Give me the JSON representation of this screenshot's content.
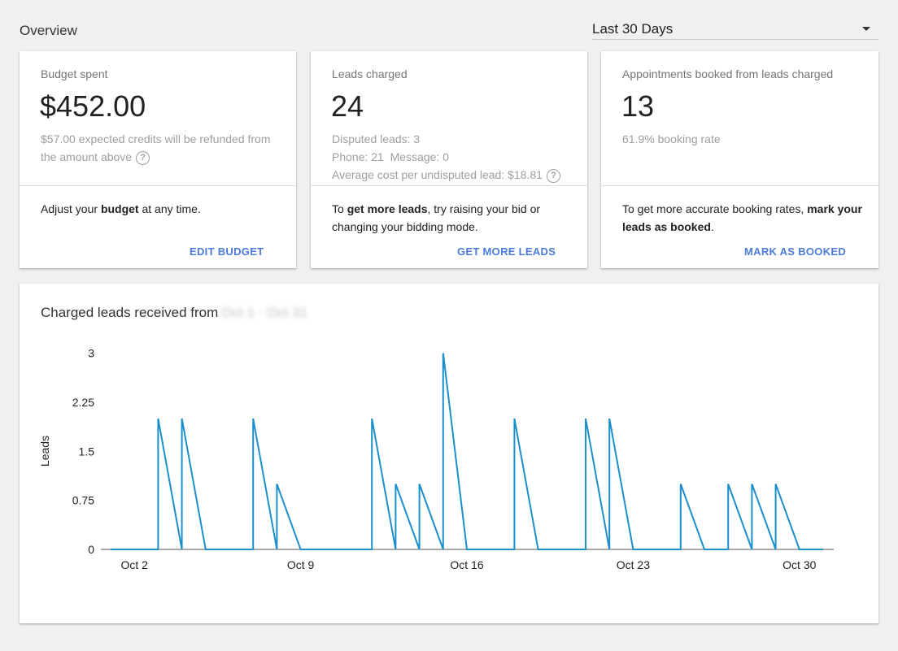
{
  "overview": {
    "title": "Overview"
  },
  "range_select": {
    "value": "Last 30 Days"
  },
  "cards": {
    "budget": {
      "label": "Budget spent",
      "value": "$452.00",
      "sub_line1": "$57.00 expected credits will be refunded from",
      "sub_line2": "the amount above",
      "tip_pre": "Adjust your ",
      "tip_bold": "budget",
      "tip_post": " at any time.",
      "action": "EDIT BUDGET"
    },
    "leads": {
      "label": "Leads charged",
      "value": "24",
      "disputed": "Disputed leads: 3",
      "phone_message": "Phone: 21  Message: 0",
      "avg_cost": "Average cost per undisputed lead: $18.81",
      "tip_pre": "To ",
      "tip_bold": "get more leads",
      "tip_post": ", try raising your bid or changing your bidding mode.",
      "action": "GET MORE LEADS"
    },
    "appointments": {
      "label": "Appointments booked from leads charged",
      "value": "13",
      "rate": "61.9% booking rate",
      "tip_pre": "To get more accurate booking rates, ",
      "tip_bold": "mark your leads as booked",
      "tip_post": ".",
      "action": "MARK AS BOOKED"
    }
  },
  "chart": {
    "title": "Charged leads received from",
    "blurred_range": "Oct 1 - Oct 31",
    "line_color": "#1a8fc9"
  },
  "chart_data": {
    "type": "line",
    "ylabel": "Leads",
    "xlabel": "",
    "ylim": [
      0,
      3
    ],
    "y_ticks": [
      "0",
      "0.75",
      "1.5",
      "2.25",
      "3"
    ],
    "y_tick_values": [
      0,
      0.75,
      1.5,
      2.25,
      3
    ],
    "x_ticks": [
      "Oct 2",
      "Oct 9",
      "Oct 16",
      "Oct 23",
      "Oct 30"
    ],
    "x_tick_days": [
      2,
      9,
      16,
      23,
      30
    ],
    "x_range_days": [
      1,
      31
    ],
    "series": [
      {
        "points": [
          [
            1,
            0
          ],
          [
            2,
            0
          ],
          [
            3,
            0
          ],
          [
            3,
            2
          ],
          [
            4,
            0
          ],
          [
            4,
            2
          ],
          [
            5,
            0
          ],
          [
            6,
            0
          ],
          [
            7,
            0
          ],
          [
            7,
            2
          ],
          [
            8,
            0
          ],
          [
            8,
            1
          ],
          [
            9,
            0
          ],
          [
            10,
            0
          ],
          [
            11,
            0
          ],
          [
            12,
            0
          ],
          [
            12,
            2
          ],
          [
            13,
            0
          ],
          [
            13,
            1
          ],
          [
            14,
            0
          ],
          [
            14,
            1
          ],
          [
            15,
            0
          ],
          [
            15,
            3
          ],
          [
            16,
            0
          ],
          [
            17,
            0
          ],
          [
            18,
            0
          ],
          [
            18,
            2
          ],
          [
            19,
            0
          ],
          [
            20,
            0
          ],
          [
            21,
            0
          ],
          [
            21,
            2
          ],
          [
            22,
            0
          ],
          [
            22,
            2
          ],
          [
            23,
            0
          ],
          [
            24,
            0
          ],
          [
            25,
            0
          ],
          [
            25,
            1
          ],
          [
            26,
            0
          ],
          [
            27,
            0
          ],
          [
            27,
            1
          ],
          [
            28,
            0
          ],
          [
            28,
            1
          ],
          [
            29,
            0
          ],
          [
            29,
            1
          ],
          [
            30,
            0
          ],
          [
            31,
            0
          ]
        ]
      }
    ]
  }
}
